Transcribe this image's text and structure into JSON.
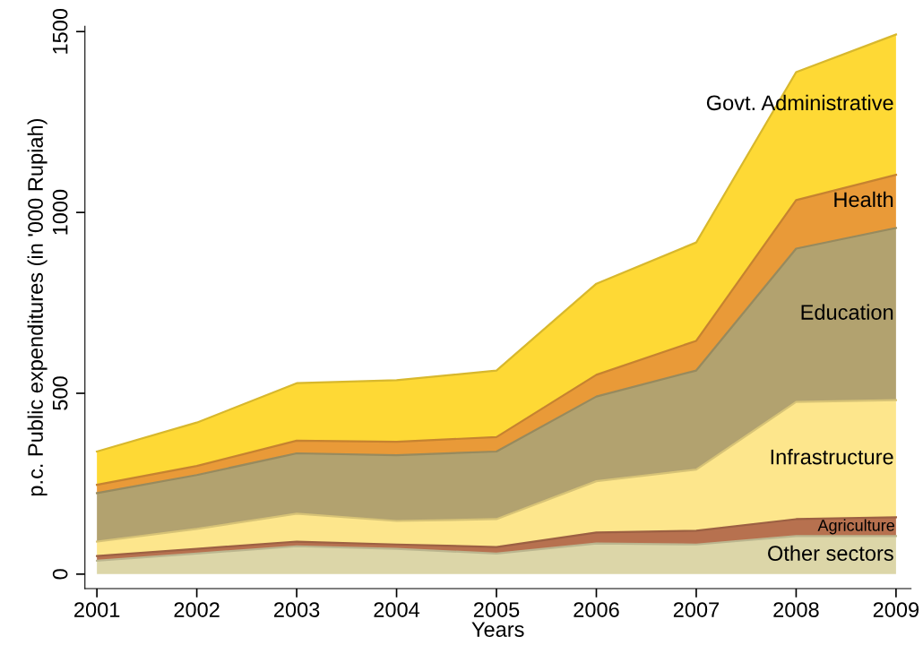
{
  "chart_data": {
    "type": "area",
    "stacked": true,
    "xlabel": "Years",
    "ylabel": "p.c. Public expenditures (in '000 Rupiah)",
    "x": [
      2001,
      2002,
      2003,
      2004,
      2005,
      2006,
      2007,
      2008,
      2009
    ],
    "xlim": [
      2000.88,
      2009.15
    ],
    "xticks": [
      2001,
      2002,
      2003,
      2004,
      2005,
      2006,
      2007,
      2008,
      2009
    ],
    "ylim": [
      -40,
      1515
    ],
    "yticks": [
      0,
      500,
      1000,
      1500
    ],
    "grid": false,
    "legend": false,
    "series": [
      {
        "name": "Other sectors",
        "color": "#dcd6a8",
        "values": [
          37,
          57,
          77,
          70,
          57,
          85,
          82,
          105,
          105
        ]
      },
      {
        "name": "Agriculture",
        "color": "#b7714f",
        "values": [
          13,
          13,
          13,
          12,
          18,
          30,
          38,
          47,
          52
        ]
      },
      {
        "name": "Infrastructure",
        "color": "#fde68c",
        "values": [
          40,
          55,
          77,
          65,
          77,
          142,
          169,
          324,
          324
        ]
      },
      {
        "name": "Education",
        "color": "#b2a26f",
        "values": [
          134,
          149,
          167,
          182,
          187,
          234,
          274,
          424,
          476
        ]
      },
      {
        "name": "Health",
        "color": "#e99a38",
        "values": [
          23,
          25,
          35,
          37,
          40,
          60,
          82,
          134,
          147
        ]
      },
      {
        "name": "Govt. Administrative",
        "color": "#fed935",
        "values": [
          92,
          120,
          159,
          170,
          184,
          252,
          272,
          354,
          388
        ]
      }
    ]
  }
}
